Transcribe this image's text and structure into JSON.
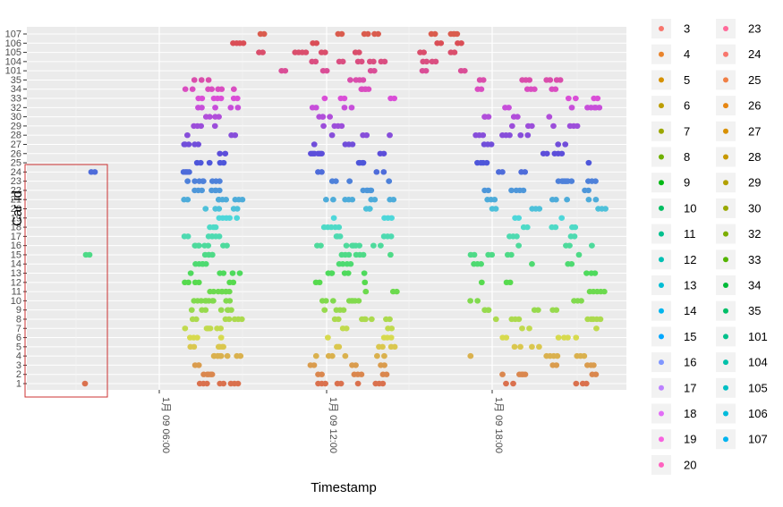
{
  "chart_data": {
    "type": "scatter",
    "xlabel": "Timestamp",
    "ylabel": "Car id",
    "x_ticks": [
      "1月 09 06:00",
      "1月 09 12:00",
      "1月 09 18:00"
    ],
    "y_categories": [
      "1",
      "2",
      "3",
      "4",
      "5",
      "6",
      "7",
      "8",
      "9",
      "10",
      "11",
      "12",
      "13",
      "14",
      "15",
      "16",
      "17",
      "18",
      "19",
      "20",
      "21",
      "22",
      "23",
      "24",
      "25",
      "26",
      "27",
      "28",
      "29",
      "30",
      "32",
      "33",
      "34",
      "35",
      "101",
      "104",
      "105",
      "106",
      "107"
    ],
    "legend_position": "right",
    "legend_columns": [
      [
        "3",
        "4",
        "5",
        "6",
        "7",
        "8",
        "9",
        "10",
        "11",
        "12",
        "13",
        "14",
        "15",
        "16",
        "17",
        "18",
        "19",
        "20"
      ],
      [
        "23",
        "24",
        "25",
        "26",
        "27",
        "28",
        "29",
        "30",
        "32",
        "33",
        "34",
        "35",
        "101",
        "104",
        "105",
        "106",
        "107"
      ]
    ],
    "legend_colors": {
      "3": "#f8766d",
      "4": "#e9842c",
      "5": "#d69100",
      "6": "#bc9d00",
      "7": "#9ca700",
      "8": "#6fb000",
      "9": "#00b813",
      "10": "#00bd61",
      "11": "#00c08e",
      "12": "#00c0b4",
      "13": "#00bdd4",
      "14": "#00b5ee",
      "15": "#00a7ff",
      "16": "#7f96ff",
      "17": "#bc81ff",
      "18": "#e26ef7",
      "19": "#f863df",
      "20": "#ff62bf",
      "23": "#ff6a9a",
      "24": "#f8766d",
      "25": "#f07f45",
      "26": "#e68613",
      "27": "#d89000",
      "28": "#c79800",
      "29": "#b2a000",
      "30": "#99a800",
      "32": "#7cae00",
      "33": "#53b400",
      "34": "#00ba38",
      "35": "#00be67",
      "101": "#00c08b",
      "104": "#00c1aa",
      "105": "#00bfc4",
      "106": "#00bbdb",
      "107": "#00b4f0"
    },
    "annotation": "red rectangle highlighting early observations of cars 1, 15 and 24"
  }
}
